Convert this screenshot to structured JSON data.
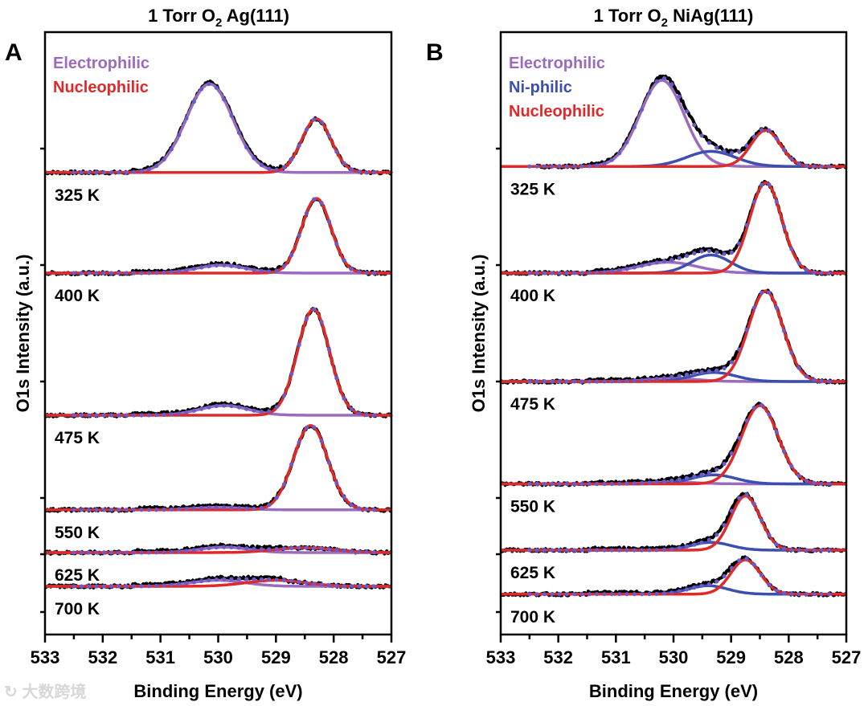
{
  "watermark": "大数跨境",
  "colors": {
    "electrophilic": "#9b6bbf",
    "ni_philic": "#3b4fb0",
    "nucleophilic": "#e02a2a",
    "data": "#000000",
    "fit_dots": "#6a5acd"
  },
  "chart_data": [
    {
      "type": "line",
      "panel_label": "A",
      "title": "1 Torr O",
      "title_sub": "2",
      "title_rest": " Ag(111)",
      "xlabel": "Binding Energy (eV)",
      "ylabel": "O1s Intensity (a.u.)",
      "xlim": [
        533,
        527
      ],
      "ylim": [
        0,
        100
      ],
      "xticks": [
        "533",
        "532",
        "531",
        "530",
        "529",
        "528",
        "527"
      ],
      "legend": [
        "Electrophilic",
        "Nucleophilic"
      ],
      "legend_placement": "top-left",
      "spectra": [
        {
          "label": "325 K",
          "baseline": 76.7,
          "components": [
            {
              "name": "Electrophilic",
              "center": 530.15,
              "height": 14.7,
              "fwhm": 0.95
            },
            {
              "name": "Nucleophilic",
              "center": 528.3,
              "height": 8.9,
              "fwhm": 0.6
            }
          ]
        },
        {
          "label": "400 K",
          "baseline": 60,
          "components": [
            {
              "name": "Electrophilic",
              "center": 529.95,
              "height": 1.3,
              "fwhm": 1.0
            },
            {
              "name": "Nucleophilic",
              "center": 528.3,
              "height": 12.4,
              "fwhm": 0.6
            }
          ]
        },
        {
          "label": "475 K",
          "baseline": 36.4,
          "components": [
            {
              "name": "Electrophilic",
              "center": 529.9,
              "height": 1.6,
              "fwhm": 1.0
            },
            {
              "name": "Nucleophilic",
              "center": 528.35,
              "height": 17.6,
              "fwhm": 0.65
            }
          ]
        },
        {
          "label": "550 K",
          "baseline": 20.7,
          "components": [
            {
              "name": "Electrophilic",
              "center": 530.0,
              "height": 0.4,
              "fwhm": 1.0
            },
            {
              "name": "Nucleophilic",
              "center": 528.4,
              "height": 14,
              "fwhm": 0.7
            }
          ]
        },
        {
          "label": "625 K",
          "baseline": 13.6,
          "components": [
            {
              "name": "Electrophilic",
              "center": 529.9,
              "height": 0.9,
              "fwhm": 1.0
            },
            {
              "name": "Nucleophilic",
              "center": 528.5,
              "height": 0.8,
              "fwhm": 1.2
            }
          ]
        },
        {
          "label": "700 K",
          "baseline": 8,
          "components": [
            {
              "name": "Electrophilic",
              "center": 530.0,
              "height": 1.0,
              "fwhm": 1.1
            },
            {
              "name": "Nucleophilic",
              "center": 529.0,
              "height": 1.0,
              "fwhm": 1.2
            }
          ]
        }
      ]
    },
    {
      "type": "line",
      "panel_label": "B",
      "title": "1 Torr O",
      "title_sub": "2",
      "title_rest": " NiAg(111)",
      "xlabel": "Binding Energy (eV)",
      "ylabel": "O1s Intensity (a.u.)",
      "xlim": [
        533,
        527
      ],
      "ylim": [
        0,
        100
      ],
      "xticks": [
        "533",
        "532",
        "531",
        "530",
        "529",
        "528",
        "527"
      ],
      "legend": [
        "Electrophilic",
        "Ni-philic",
        "Nucleophilic"
      ],
      "legend_placement": "top-left",
      "spectra": [
        {
          "label": "325 K",
          "baseline": 77.7,
          "components": [
            {
              "name": "Electrophilic",
              "center": 530.2,
              "height": 14.3,
              "fwhm": 0.9
            },
            {
              "name": "Ni-philic",
              "center": 529.35,
              "height": 2.5,
              "fwhm": 1.0
            },
            {
              "name": "Nucleophilic",
              "center": 528.4,
              "height": 6,
              "fwhm": 0.6
            }
          ]
        },
        {
          "label": "400 K",
          "baseline": 60,
          "components": [
            {
              "name": "Electrophilic",
              "center": 530.1,
              "height": 1.8,
              "fwhm": 1.2
            },
            {
              "name": "Ni-philic",
              "center": 529.35,
              "height": 3,
              "fwhm": 0.8
            },
            {
              "name": "Nucleophilic",
              "center": 528.4,
              "height": 15,
              "fwhm": 0.65
            }
          ]
        },
        {
          "label": "475 K",
          "baseline": 42,
          "components": [
            {
              "name": "Electrophilic",
              "center": 530.0,
              "height": 0.5,
              "fwhm": 1.0
            },
            {
              "name": "Ni-philic",
              "center": 529.3,
              "height": 1.5,
              "fwhm": 0.9
            },
            {
              "name": "Nucleophilic",
              "center": 528.4,
              "height": 15,
              "fwhm": 0.7
            }
          ]
        },
        {
          "label": "550 K",
          "baseline": 25,
          "components": [
            {
              "name": "Electrophilic",
              "center": 530.0,
              "height": 0.3,
              "fwhm": 1.0
            },
            {
              "name": "Ni-philic",
              "center": 529.3,
              "height": 1.5,
              "fwhm": 0.9
            },
            {
              "name": "Nucleophilic",
              "center": 528.5,
              "height": 13,
              "fwhm": 0.75
            }
          ]
        },
        {
          "label": "625 K",
          "baseline": 14,
          "components": [
            {
              "name": "Ni-philic",
              "center": 529.35,
              "height": 1.3,
              "fwhm": 0.8
            },
            {
              "name": "Nucleophilic",
              "center": 528.75,
              "height": 9,
              "fwhm": 0.6
            }
          ]
        },
        {
          "label": "700 K",
          "baseline": 6.7,
          "components": [
            {
              "name": "Ni-philic",
              "center": 529.4,
              "height": 1.4,
              "fwhm": 0.8
            },
            {
              "name": "Nucleophilic",
              "center": 528.75,
              "height": 5.7,
              "fwhm": 0.6
            }
          ]
        }
      ]
    }
  ]
}
